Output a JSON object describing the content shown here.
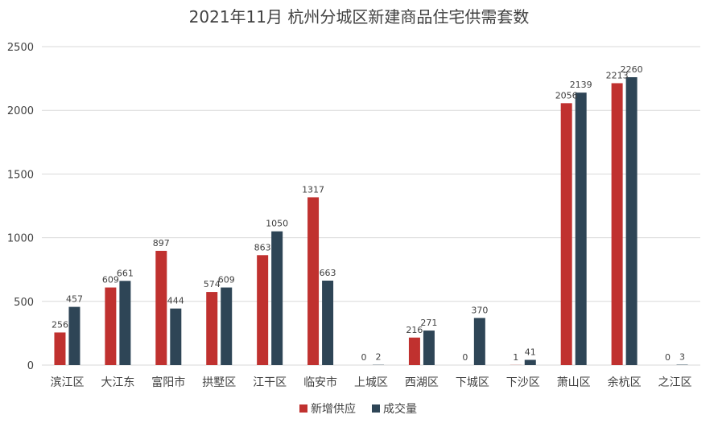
{
  "chart_data": {
    "type": "bar",
    "title": "2021年11月 杭州分城区新建商品住宅供需套数",
    "categories": [
      "滨江区",
      "大江东",
      "富阳市",
      "拱墅区",
      "江干区",
      "临安市",
      "上城区",
      "西湖区",
      "下城区",
      "下沙区",
      "萧山区",
      "余杭区",
      "之江区"
    ],
    "series": [
      {
        "name": "新增供应",
        "color": "#C0312F",
        "values": [
          256,
          609,
          897,
          574,
          863,
          1317,
          0,
          216,
          0,
          1,
          2056,
          2213,
          0
        ]
      },
      {
        "name": "成交量",
        "color": "#2E4556",
        "values": [
          457,
          661,
          444,
          609,
          1050,
          663,
          2,
          271,
          370,
          41,
          2139,
          2260,
          3
        ]
      }
    ],
    "yticks": [
      0,
      500,
      1000,
      1500,
      2000,
      2500
    ],
    "ylim": [
      0,
      2500
    ],
    "grid": true,
    "legend": "bottom"
  }
}
